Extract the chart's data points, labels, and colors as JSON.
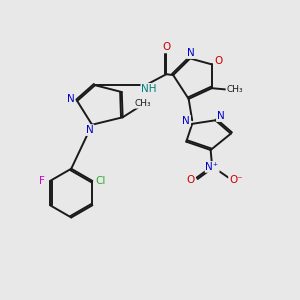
{
  "bg_color": "#e8e8e8",
  "bond_color": "#1a1a1a",
  "bond_width": 1.4,
  "dbo": 0.055,
  "N_color": "#0000cc",
  "O_color": "#cc0000",
  "F_color": "#cc00cc",
  "Cl_color": "#33aa33",
  "NH_color": "#008080",
  "figsize": [
    3.0,
    3.0
  ],
  "dpi": 100,
  "xlim": [
    0,
    10
  ],
  "ylim": [
    0,
    10
  ]
}
